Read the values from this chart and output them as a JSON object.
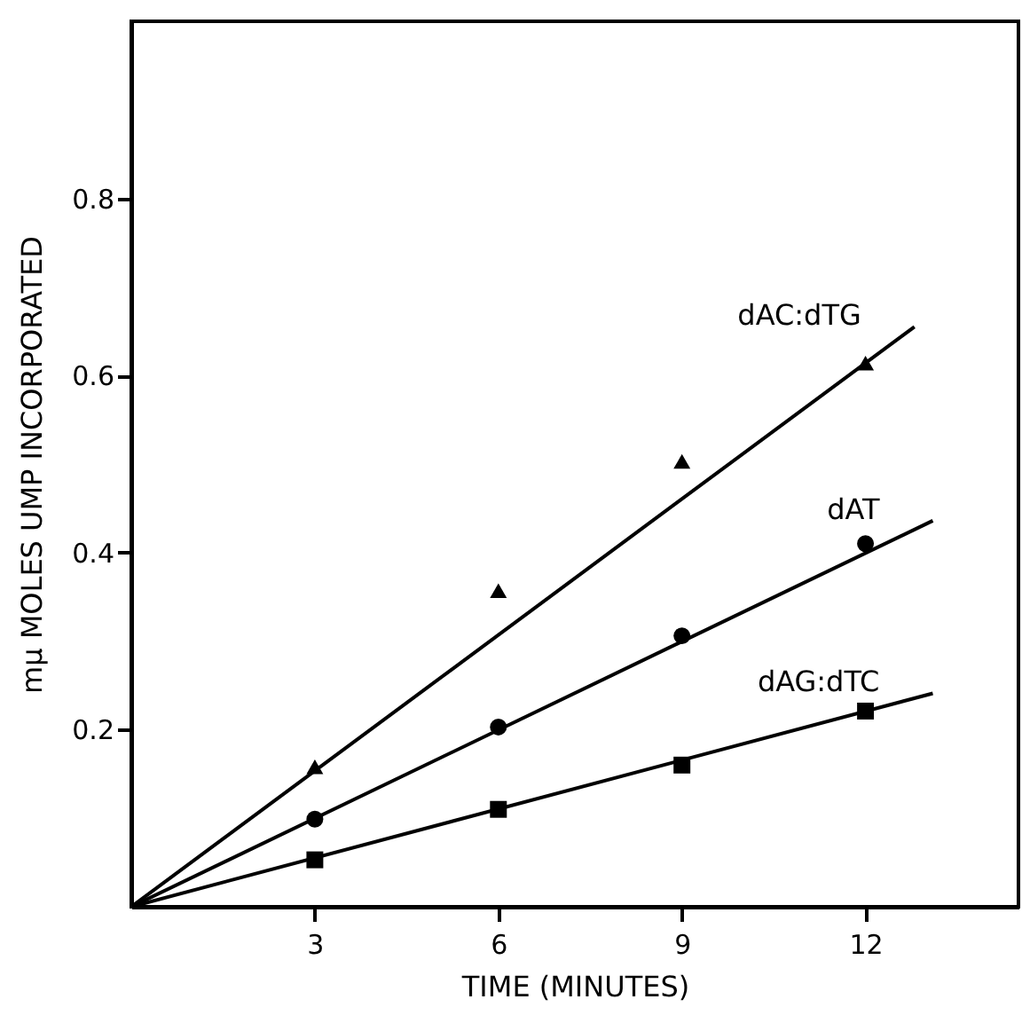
{
  "chart_data": {
    "type": "scatter",
    "xlabel": "TIME (MINUTES)",
    "ylabel": "mμ MOLES UMP INCORPORATED",
    "xlim": [
      0,
      14.5
    ],
    "ylim": [
      0,
      1.0
    ],
    "xticks": [
      3,
      6,
      9,
      12
    ],
    "yticks": [
      0.2,
      0.4,
      0.6,
      0.8
    ],
    "grid": false,
    "series": [
      {
        "marker": "triangle",
        "color": "#000000",
        "x": [
          3,
          6,
          9,
          12
        ],
        "values": [
          0.158,
          0.357,
          0.503,
          0.614
        ]
      },
      {
        "marker": "circle",
        "color": "#000000",
        "x": [
          3,
          6,
          9,
          12
        ],
        "values": [
          0.099,
          0.203,
          0.306,
          0.41
        ]
      },
      {
        "marker": "square",
        "color": "#000000",
        "x": [
          3,
          6,
          9,
          12
        ],
        "values": [
          0.053,
          0.11,
          0.16,
          0.221
        ]
      },
      {
        "type": "line",
        "name": "dAC:dTG",
        "color": "#000000",
        "line_style": "solid",
        "marker": "none",
        "x": [
          0,
          12.8
        ],
        "values": [
          0,
          0.655
        ]
      },
      {
        "type": "line",
        "name": "dAT",
        "color": "#000000",
        "line_style": "solid",
        "marker": "none",
        "x": [
          0,
          13.1
        ],
        "values": [
          0,
          0.436
        ]
      },
      {
        "type": "line",
        "name": "dAG:dTC",
        "color": "#000000",
        "line_style": "solid",
        "marker": "none",
        "x": [
          0,
          13.1
        ],
        "values": [
          0,
          0.241
        ]
      }
    ]
  }
}
